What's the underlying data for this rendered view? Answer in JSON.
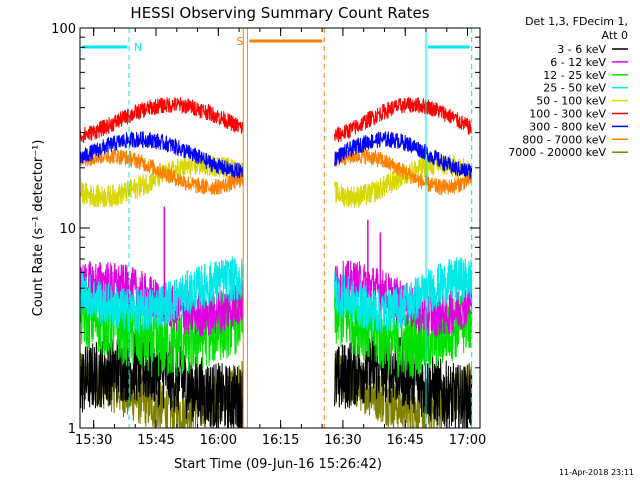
{
  "chart_data": {
    "type": "line",
    "title": "HESSI Observing Summary Count Rates",
    "xlabel": "Start Time (09-Jun-16 15:26:42)",
    "ylabel": "Count Rate (s⁻¹ detector⁻¹)",
    "y_scale": "log",
    "ylim": [
      1,
      100
    ],
    "xlim": [
      "15:26:42",
      "17:03:00"
    ],
    "x_ticks": [
      "15:30",
      "15:45",
      "16:00",
      "16:15",
      "16:30",
      "16:45",
      "17:00"
    ],
    "y_ticks": [
      "1",
      "10",
      "100"
    ],
    "legend": {
      "placement": "right",
      "header": [
        "Det 1,3, FDecim 1,",
        "Att 0"
      ],
      "entries": [
        {
          "label": "3 - 6 keV",
          "color": "#000000"
        },
        {
          "label": "6 - 12 keV",
          "color": "#e000e0"
        },
        {
          "label": "12 - 25 keV",
          "color": "#00e000"
        },
        {
          "label": "25 - 50 keV",
          "color": "#00e8e8"
        },
        {
          "label": "50 - 100 keV",
          "color": "#d8d800"
        },
        {
          "label": "100 - 300 keV",
          "color": "#ff0000"
        },
        {
          "label": "300 - 800 keV",
          "color": "#0000ff"
        },
        {
          "label": "800 - 7000 keV",
          "color": "#ff8000"
        },
        {
          "label": "7000 - 20000 keV",
          "color": "#808000"
        }
      ]
    },
    "segments": [
      {
        "start": "15:26:42",
        "end": "16:06:00"
      },
      {
        "start": "16:28:00",
        "end": "17:01:00"
      }
    ],
    "series": [
      {
        "name": "3 - 6 keV",
        "color": "#000000",
        "base": 1.7,
        "amp": 1.5
      },
      {
        "name": "6 - 12 keV",
        "color": "#e000e0",
        "base": 4.5,
        "amp": 1.3
      },
      {
        "name": "12 - 25 keV",
        "color": "#00e000",
        "base": 3.2,
        "amp": 1.5
      },
      {
        "name": "25 - 50 keV",
        "color": "#00e8e8",
        "base": 4.7,
        "amp": 1.3
      },
      {
        "name": "50 - 100 keV",
        "color": "#d8d800",
        "base": 17.5,
        "amp": 1.14
      },
      {
        "name": "100 - 300 keV",
        "color": "#ff0000",
        "base": 35,
        "amp": 1.1
      },
      {
        "name": "300 - 800 keV",
        "color": "#0000ff",
        "base": 23.5,
        "amp": 1.1
      },
      {
        "name": "800 - 7000 keV",
        "color": "#ff8000",
        "base": 19.5,
        "amp": 1.1
      },
      {
        "name": "7000 - 20000 keV",
        "color": "#808000",
        "base": 1.5,
        "amp": 1.35
      }
    ],
    "flags": [
      {
        "label": "N",
        "color": "#00e8e8",
        "start": "15:26:42",
        "end": "15:38:30"
      },
      {
        "label": "S",
        "color": "#ff8000",
        "start": "16:07:00",
        "end": "16:25:30"
      },
      {
        "label": "",
        "color": "#00e8e8",
        "start": "16:50:00",
        "end": "17:01:00"
      }
    ],
    "markers": [
      {
        "time": "15:38:30",
        "color": "#00e8e8",
        "style": "dashed"
      },
      {
        "time": "16:06:00",
        "color": "#ff8000",
        "style": "solid"
      },
      {
        "time": "16:07:00",
        "color": "#ff8000",
        "style": "solid"
      },
      {
        "time": "16:25:30",
        "color": "#ff8000",
        "style": "dashed"
      },
      {
        "time": "16:50:00",
        "color": "#00e8e8",
        "style": "solid"
      },
      {
        "time": "17:01:00",
        "color": "#00e8e8",
        "style": "dashed"
      }
    ],
    "spikes": [
      {
        "time": "15:47:00",
        "value": 12.8,
        "color": "#e000e0"
      },
      {
        "time": "16:36:00",
        "value": 11,
        "color": "#e000e0"
      },
      {
        "time": "16:39:00",
        "value": 9.5,
        "color": "#e000e0"
      }
    ]
  },
  "footer": {
    "date": "11-Apr-2018 23:11"
  }
}
